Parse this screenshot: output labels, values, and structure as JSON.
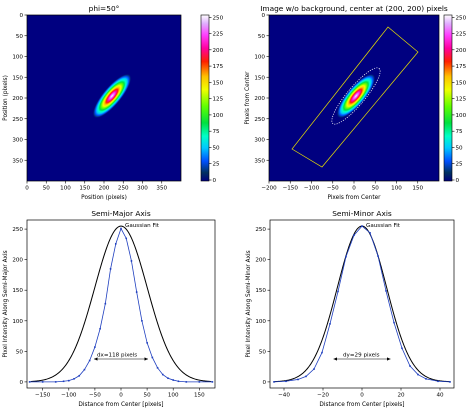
{
  "figure": {
    "panels": [
      {
        "title": "phi=50°",
        "xlabel": "Position (pixels)",
        "ylabel": "Position (pixels)",
        "xticks": [
          "0",
          "50",
          "100",
          "150",
          "200",
          "250",
          "300",
          "350"
        ],
        "yticks": [
          "0",
          "50",
          "100",
          "150",
          "200",
          "250",
          "300",
          "350"
        ]
      },
      {
        "title": "Image w/o background, center at (200, 200) pixels",
        "xlabel": "Pixels from Center",
        "ylabel": "Pixels from Center",
        "xticks": [
          "−200",
          "−150",
          "−100",
          "−50",
          "0",
          "50",
          "100",
          "150"
        ],
        "yticks": [
          "0",
          "50",
          "100",
          "150",
          "200",
          "250",
          "300",
          "350"
        ]
      },
      {
        "title": "Semi-Major Axis",
        "xlabel": "Distance from Center [pixels]",
        "ylabel": "Pixel Intensity Along Semi-Major Axis",
        "xticks": [
          "−150",
          "−100",
          "−50",
          "0",
          "50",
          "100",
          "150"
        ],
        "yticks": [
          "0",
          "50",
          "100",
          "150",
          "200",
          "250"
        ],
        "fit_label": "Gaussian Fit",
        "width_label": "dx=118 pixels"
      },
      {
        "title": "Semi-Minor Axis",
        "xlabel": "Distance from Center [pixels]",
        "ylabel": "Pixel Intensity Along Semi-Minor Axis",
        "xticks": [
          "−40",
          "−20",
          "0",
          "20",
          "40"
        ],
        "yticks": [
          "0",
          "50",
          "100",
          "150",
          "200",
          "250"
        ],
        "fit_label": "Gaussian Fit",
        "width_label": "dy=29 pixels"
      }
    ],
    "colorbar_ticks": [
      "250",
      "225",
      "200",
      "175",
      "150",
      "125",
      "100",
      "75",
      "50",
      "25",
      "0"
    ]
  },
  "chart_data": [
    {
      "type": "heatmap",
      "title": "phi=50°",
      "xlabel": "Position (pixels)",
      "ylabel": "Position (pixels)",
      "xlim": [
        0,
        400
      ],
      "ylim": [
        400,
        0
      ],
      "colormap": "gist_ncar",
      "value_range": [
        0,
        255
      ],
      "gaussian": {
        "center": [
          200,
          200
        ],
        "phi_deg": 50,
        "peak": 255,
        "dx_fwhm": 118,
        "dy_fwhm": 29
      },
      "colorbar": {
        "min": 0,
        "max": 250,
        "step": 25
      }
    },
    {
      "type": "heatmap",
      "title": "Image w/o background, center at (200, 200) pixels",
      "xlabel": "Pixels from Center",
      "ylabel": "Pixels from Center",
      "xlim": [
        -200,
        200
      ],
      "ylim": [
        400,
        0
      ],
      "colormap": "gist_ncar",
      "value_range": [
        0,
        255
      ],
      "overlays": [
        "yellow-rectangle",
        "dotted-ellipse"
      ],
      "colorbar": {
        "min": 0,
        "max": 250,
        "step": 25
      }
    },
    {
      "type": "line",
      "title": "Semi-Major Axis",
      "xlabel": "Distance from Center [pixels]",
      "ylabel": "Pixel Intensity Along Semi-Major Axis",
      "xlim": [
        -180,
        180
      ],
      "ylim": [
        -10,
        265
      ],
      "series": [
        {
          "name": "Gaussian Fit",
          "kind": "line",
          "amplitude": 255,
          "center": 0,
          "fwhm": 118
        },
        {
          "kind": "points",
          "x": [
            -175,
            -150,
            -125,
            -110,
            -100,
            -90,
            -80,
            -70,
            -60,
            -50,
            -40,
            -30,
            -20,
            -10,
            0,
            10,
            20,
            30,
            40,
            50,
            60,
            70,
            80,
            90,
            100,
            110,
            125,
            150,
            175
          ],
          "y": [
            0,
            0,
            0,
            1,
            2,
            5,
            10,
            20,
            35,
            57,
            87,
            128,
            185,
            226,
            251,
            235,
            198,
            147,
            100,
            64,
            40,
            23,
            12,
            6,
            3,
            1,
            0,
            0,
            0
          ]
        }
      ],
      "annotations": [
        {
          "text": "dx=118 pixels",
          "x0": -59,
          "x1": 59
        }
      ]
    },
    {
      "type": "line",
      "title": "Semi-Minor Axis",
      "xlabel": "Distance from Center [pixels]",
      "ylabel": "Pixel Intensity Along Semi-Minor Axis",
      "xlim": [
        -46,
        46
      ],
      "ylim": [
        -10,
        265
      ],
      "series": [
        {
          "name": "Gaussian Fit",
          "kind": "line",
          "amplitude": 255,
          "center": 0,
          "fwhm": 29
        },
        {
          "kind": "points",
          "x": [
            -44,
            -38,
            -32,
            -28,
            -24,
            -20,
            -16,
            -12,
            -8,
            -4,
            0,
            4,
            8,
            12,
            16,
            20,
            24,
            28,
            32,
            38,
            44
          ],
          "y": [
            0,
            1,
            4,
            9,
            21,
            48,
            95,
            148,
            205,
            240,
            255,
            244,
            206,
            149,
            97,
            55,
            26,
            12,
            5,
            1,
            0
          ]
        }
      ],
      "annotations": [
        {
          "text": "dy=29 pixels",
          "x0": -14.5,
          "x1": 14.5
        }
      ]
    }
  ]
}
